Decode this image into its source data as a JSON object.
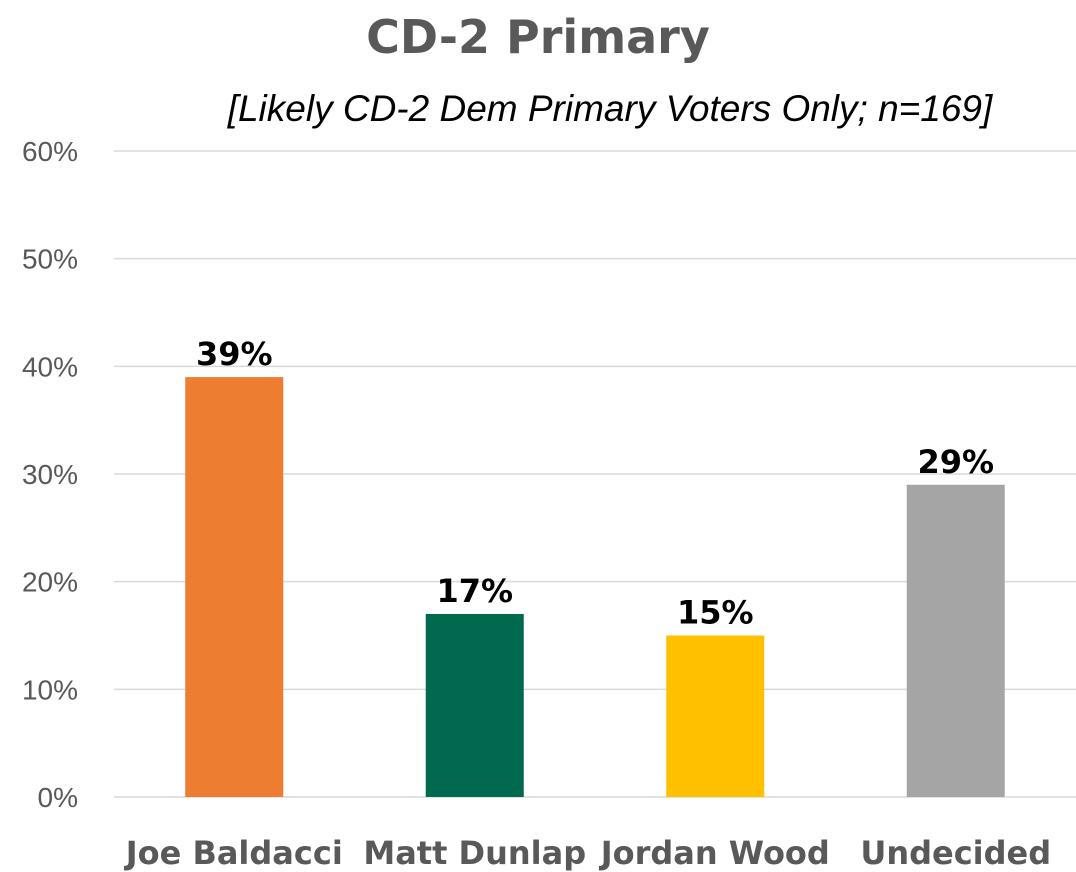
{
  "chart_data": {
    "type": "bar",
    "title": "CD-2 Primary",
    "subtitle": "[Likely CD-2 Dem Primary Voters Only; n=169]",
    "categories": [
      "Joe Baldacci",
      "Matt Dunlap",
      "Jordan Wood",
      "Undecided"
    ],
    "values": [
      39,
      17,
      15,
      29
    ],
    "data_labels": [
      "39%",
      "17%",
      "15%",
      "29%"
    ],
    "bar_colors": [
      "#ED7D31",
      "#00694E",
      "#FFC000",
      "#A5A5A5"
    ],
    "ylim": [
      0,
      60
    ],
    "yticks": [
      0,
      10,
      20,
      30,
      40,
      50,
      60
    ],
    "ytick_labels": [
      "0%",
      "10%",
      "20%",
      "30%",
      "40%",
      "50%",
      "60%"
    ],
    "grid": true,
    "legend": "none",
    "xlabel": "",
    "ylabel": ""
  }
}
